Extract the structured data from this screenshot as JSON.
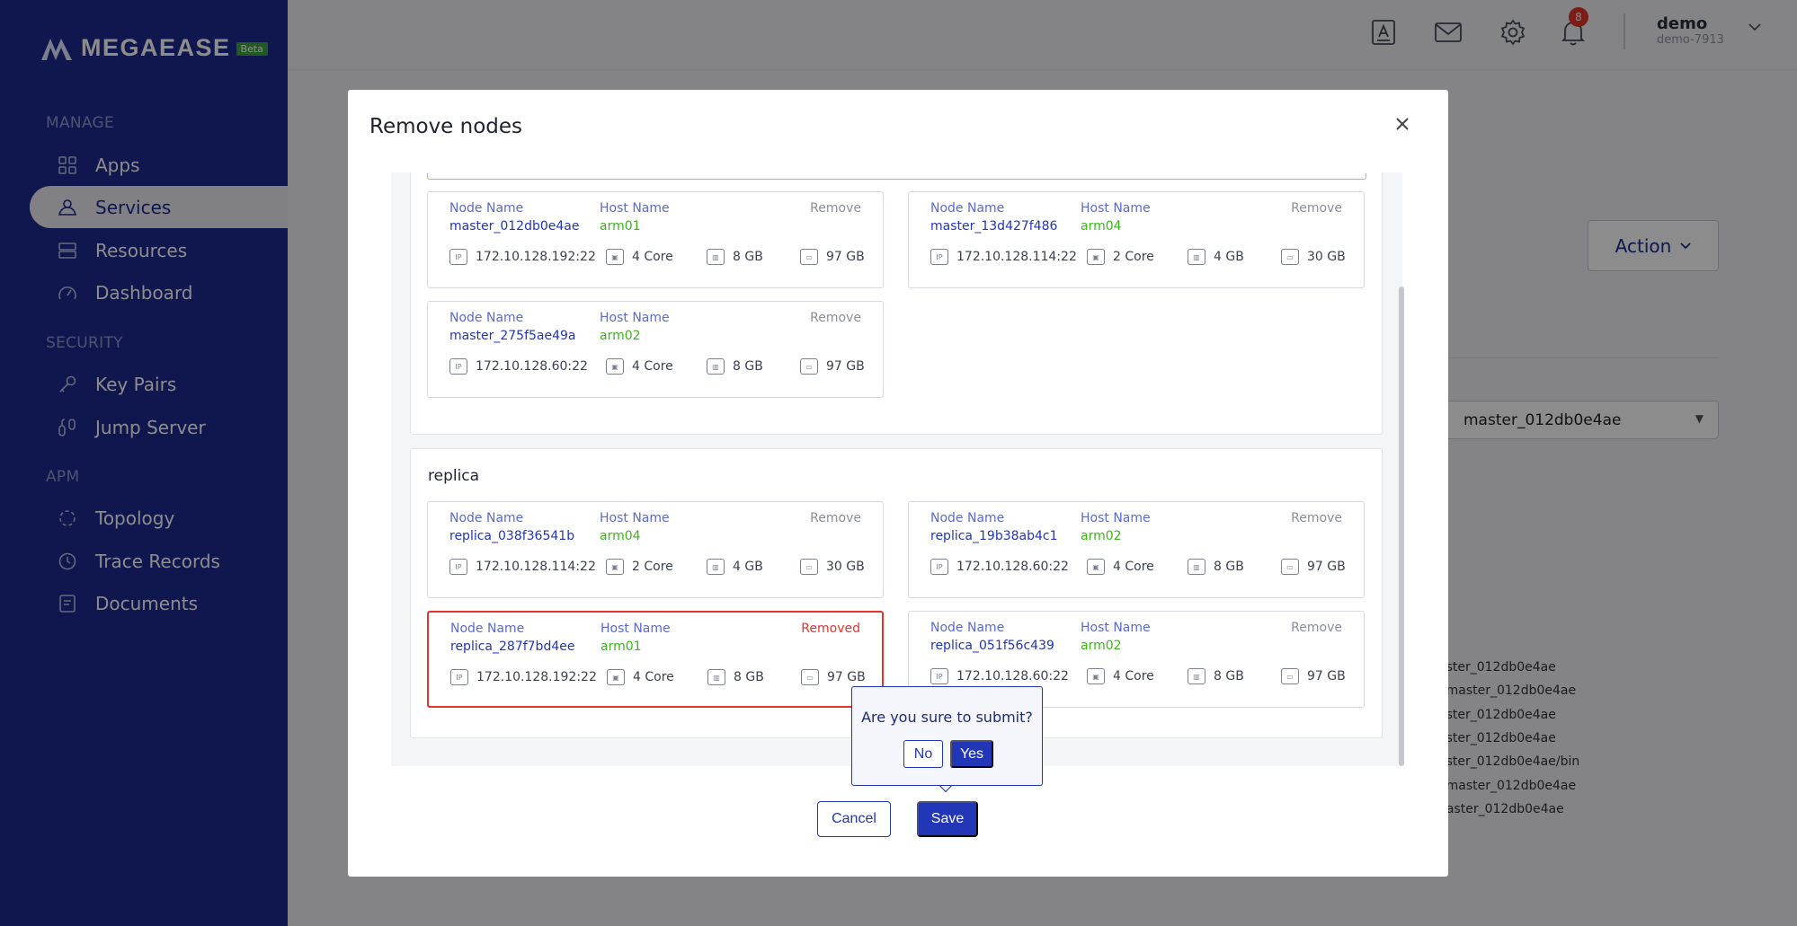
{
  "brand": {
    "name": "MEGAEASE",
    "badge": "Beta"
  },
  "sidebar": {
    "sections": [
      {
        "title": "MANAGE"
      },
      {
        "title": "SECURITY"
      },
      {
        "title": "APM"
      }
    ],
    "items": [
      {
        "label": "Apps",
        "icon": "apps-grid-icon"
      },
      {
        "label": "Services",
        "icon": "services-icon",
        "active": true
      },
      {
        "label": "Resources",
        "icon": "resources-icon"
      },
      {
        "label": "Dashboard",
        "icon": "dashboard-gauge-icon"
      },
      {
        "label": "Key Pairs",
        "icon": "key-icon"
      },
      {
        "label": "Jump Server",
        "icon": "jump-server-icon"
      },
      {
        "label": "Topology",
        "icon": "topology-icon"
      },
      {
        "label": "Trace Records",
        "icon": "clock-icon"
      },
      {
        "label": "Documents",
        "icon": "document-icon"
      }
    ]
  },
  "header": {
    "notifications_count": "8",
    "user": {
      "name": "demo",
      "id": "demo-7913"
    }
  },
  "background": {
    "action_label": "Action",
    "select_value": "master_012db0e4ae",
    "paths": [
      "aster_012db0e4ae",
      "l/master_012db0e4ae",
      "aster_012db0e4ae",
      "aster_012db0e4ae",
      "aster_012db0e4ae/bin",
      "l/master_012db0e4ae",
      "naster_012db0e4ae"
    ]
  },
  "modal": {
    "title": "Remove nodes",
    "labels": {
      "node_name": "Node Name",
      "host_name": "Host Name"
    },
    "groups": [
      {
        "name": "",
        "nodes": [
          {
            "node": "master_012db0e4ae",
            "host": "arm01",
            "ip": "172.10.128.192:22",
            "cpu": "4 Core",
            "mem": "8 GB",
            "disk": "97 GB",
            "action": "Remove"
          },
          {
            "node": "master_13d427f486",
            "host": "arm04",
            "ip": "172.10.128.114:22",
            "cpu": "2 Core",
            "mem": "4 GB",
            "disk": "30 GB",
            "action": "Remove"
          },
          {
            "node": "master_275f5ae49a",
            "host": "arm02",
            "ip": "172.10.128.60:22",
            "cpu": "4 Core",
            "mem": "8 GB",
            "disk": "97 GB",
            "action": "Remove"
          }
        ]
      },
      {
        "name": "replica",
        "nodes": [
          {
            "node": "replica_038f36541b",
            "host": "arm04",
            "ip": "172.10.128.114:22",
            "cpu": "2 Core",
            "mem": "4 GB",
            "disk": "30 GB",
            "action": "Remove"
          },
          {
            "node": "replica_19b38ab4c1",
            "host": "arm02",
            "ip": "172.10.128.60:22",
            "cpu": "4 Core",
            "mem": "8 GB",
            "disk": "97 GB",
            "action": "Remove"
          },
          {
            "node": "replica_287f7bd4ee",
            "host": "arm01",
            "ip": "172.10.128.192:22",
            "cpu": "4 Core",
            "mem": "8 GB",
            "disk": "97 GB",
            "action": "Removed"
          },
          {
            "node": "replica_051f56c439",
            "host": "arm02",
            "ip": "172.10.128.60:22",
            "cpu": "4 Core",
            "mem": "8 GB",
            "disk": "97 GB",
            "action": "Remove"
          }
        ]
      }
    ],
    "cancel_label": "Cancel",
    "save_label": "Save",
    "confirm": {
      "message": "Are you sure to submit?",
      "no_label": "No",
      "yes_label": "Yes"
    }
  },
  "colors": {
    "sidebar_bg": "#1d2a8f",
    "primary": "#2236b8",
    "host_green": "#3bb51a",
    "removed_red": "#e8332d",
    "warning_border": "#f5a623"
  }
}
